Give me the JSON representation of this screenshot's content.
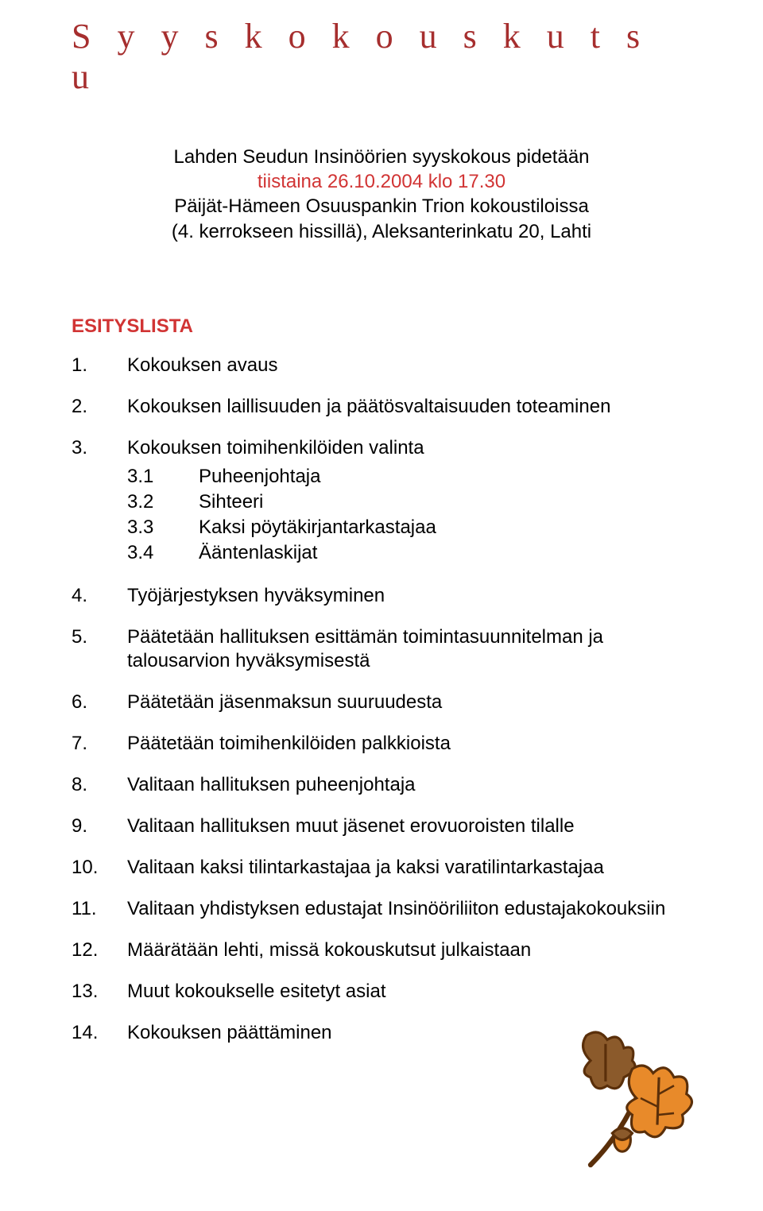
{
  "title": "S y y s k o k o u s k u t s u",
  "intro": {
    "line1": "Lahden Seudun Insinöörien syyskokous pidetään",
    "line2": "tiistaina 26.10.2004 klo 17.30",
    "line3": "Päijät-Hämeen Osuuspankin Trion kokoustiloissa",
    "line4": "(4. kerrokseen hissillä), Aleksanterinkatu 20, Lahti"
  },
  "sectionHeading": "ESITYSLISTA",
  "agenda": [
    {
      "n": "1.",
      "t": "Kokouksen avaus"
    },
    {
      "n": "2.",
      "t": "Kokouksen laillisuuden ja päätösvaltaisuuden toteaminen"
    },
    {
      "n": "3.",
      "t": "Kokouksen toimihenkilöiden valinta",
      "sub": [
        {
          "sn": "3.1",
          "st": "Puheenjohtaja"
        },
        {
          "sn": "3.2",
          "st": "Sihteeri"
        },
        {
          "sn": "3.3",
          "st": "Kaksi pöytäkirjantarkastajaa"
        },
        {
          "sn": "3.4",
          "st": "Ääntenlaskijat"
        }
      ]
    },
    {
      "n": "4.",
      "t": "Työjärjestyksen hyväksyminen"
    },
    {
      "n": "5.",
      "t": "Päätetään hallituksen esittämän toimintasuunnitelman ja talousarvion hyväksymisestä"
    },
    {
      "n": "6.",
      "t": "Päätetään jäsenmaksun suuruudesta"
    },
    {
      "n": "7.",
      "t": "Päätetään toimihenkilöiden palkkioista"
    },
    {
      "n": "8.",
      "t": "Valitaan hallituksen puheenjohtaja"
    },
    {
      "n": "9.",
      "t": "Valitaan hallituksen muut jäsenet erovuoroisten tilalle"
    },
    {
      "n": "10.",
      "t": "Valitaan kaksi tilintarkastajaa ja kaksi varatilintarkastajaa"
    },
    {
      "n": "11.",
      "t": "Valitaan yhdistyksen edustajat Insinööriliiton edustajakokouksiin"
    },
    {
      "n": "12.",
      "t": "Määrätään lehti, missä kokouskutsut julkaistaan"
    },
    {
      "n": "13.",
      "t": "Muut kokoukselle esitetyt asiat"
    },
    {
      "n": "14.",
      "t": "Kokouksen päättäminen"
    }
  ],
  "colors": {
    "titleColor": "#a62e2e",
    "accentColor": "#d13434",
    "textColor": "#000000",
    "leafFill": "#e88a2a",
    "leafStroke": "#5a2f0a",
    "acornFill": "#8b5a2b"
  }
}
